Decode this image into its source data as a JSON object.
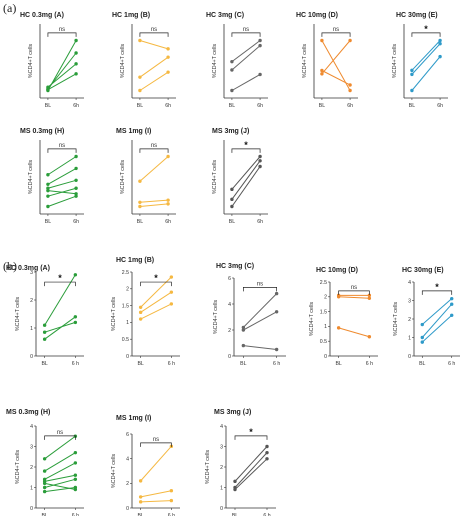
{
  "figure_labels": {
    "a": "(a)",
    "b": "(b)"
  },
  "colors": {
    "HC_low": "#2a9d3a",
    "HC_mid_dose": "#f5b841",
    "HC_3mg": "#666666",
    "HC_10mg": "#ef8a2e",
    "HC_30mg": "#2e9ac9",
    "MS_low": "#2a9d3a",
    "MS_1mg": "#f5b841",
    "MS_3mg": "#555555"
  },
  "chart_data": [
    {
      "type": "line",
      "group": "a",
      "title": "HC 0.3mg (A)",
      "ylabel": "%CD4+T cells",
      "categories": [
        "BL",
        "6h"
      ],
      "colorKey": "HC_low",
      "sig": "ns",
      "yticks": [],
      "series": [
        {
          "values": [
            5.0,
            11.0
          ]
        },
        {
          "values": [
            5.2,
            9.5
          ]
        },
        {
          "values": [
            5.4,
            8.2
          ]
        },
        {
          "values": [
            5.1,
            7.0
          ]
        }
      ]
    },
    {
      "type": "line",
      "group": "a",
      "title": "HC 1mg (B)",
      "ylabel": "%CD4+T cells",
      "categories": [
        "BL",
        "6h"
      ],
      "colorKey": "HC_mid_dose",
      "sig": "ns",
      "yticks": [],
      "series": [
        {
          "values": [
            8.2,
            7.7
          ]
        },
        {
          "values": [
            6.0,
            7.2
          ]
        },
        {
          "values": [
            5.2,
            6.3
          ]
        }
      ]
    },
    {
      "type": "line",
      "group": "a",
      "title": "HC 3mg (C)",
      "ylabel": "%CD4+T cells",
      "categories": [
        "BL",
        "6h"
      ],
      "colorKey": "HC_3mg",
      "sig": "ns",
      "yticks": [],
      "series": [
        {
          "values": [
            6.5,
            9.8
          ]
        },
        {
          "values": [
            5.2,
            9.0
          ]
        },
        {
          "values": [
            2.0,
            4.5
          ]
        }
      ]
    },
    {
      "type": "line",
      "group": "a",
      "title": "HC 10mg (D)",
      "ylabel": "%CD4+T cells",
      "categories": [
        "BL",
        "6h"
      ],
      "colorKey": "HC_10mg",
      "sig": "ns",
      "yticks": [],
      "series": [
        {
          "values": [
            9.5,
            5.0
          ]
        },
        {
          "values": [
            6.5,
            9.5
          ]
        },
        {
          "values": [
            6.8,
            5.5
          ]
        }
      ]
    },
    {
      "type": "line",
      "group": "a",
      "title": "HC 30mg (E)",
      "ylabel": "%CD4+T cells",
      "categories": [
        "BL",
        "6h"
      ],
      "colorKey": "HC_30mg",
      "sig": "*",
      "yticks": [],
      "series": [
        {
          "values": [
            6.5,
            10.2
          ]
        },
        {
          "values": [
            6.0,
            9.8
          ]
        },
        {
          "values": [
            4.0,
            8.2
          ]
        }
      ]
    },
    {
      "type": "line",
      "group": "a",
      "title": "MS 0.3mg (H)",
      "ylabel": "%CD4+T cells",
      "categories": [
        "BL",
        "6h"
      ],
      "colorKey": "MS_low",
      "sig": "ns",
      "yticks": [],
      "series": [
        {
          "values": [
            8.2,
            10.5
          ]
        },
        {
          "values": [
            7.0,
            9.0
          ]
        },
        {
          "values": [
            6.5,
            7.5
          ]
        },
        {
          "values": [
            5.5,
            6.5
          ]
        },
        {
          "values": [
            6.2,
            5.8
          ]
        },
        {
          "values": [
            4.2,
            5.5
          ]
        }
      ]
    },
    {
      "type": "line",
      "group": "a",
      "title": "MS 1mg (I)",
      "ylabel": "%CD4+T cells",
      "categories": [
        "BL",
        "6h"
      ],
      "colorKey": "MS_1mg",
      "sig": "ns",
      "yticks": [],
      "series": [
        {
          "values": [
            9.8,
            14.5
          ]
        },
        {
          "values": [
            5.8,
            6.2
          ]
        },
        {
          "values": [
            5.0,
            5.5
          ]
        }
      ]
    },
    {
      "type": "line",
      "group": "a",
      "title": "MS 3mg (J)",
      "ylabel": "%CD4+T cells",
      "categories": [
        "BL",
        "6h"
      ],
      "colorKey": "MS_3mg",
      "sig": "*",
      "yticks": [],
      "series": [
        {
          "values": [
            8.2,
            10.5
          ]
        },
        {
          "values": [
            7.5,
            10.2
          ]
        },
        {
          "values": [
            7.0,
            9.8
          ]
        }
      ]
    },
    {
      "type": "line",
      "group": "b",
      "title": "HC 0.3mg (A)",
      "ylabel": "%CD4+T cells",
      "categories": [
        "BL",
        "6 h"
      ],
      "colorKey": "HC_low",
      "sig": "*",
      "ylim": [
        0,
        3
      ],
      "yticks": [
        0,
        1,
        2,
        3
      ],
      "series": [
        {
          "values": [
            1.1,
            2.9
          ]
        },
        {
          "values": [
            0.6,
            1.4
          ]
        },
        {
          "values": [
            0.85,
            1.2
          ]
        }
      ]
    },
    {
      "type": "line",
      "group": "b",
      "title": "HC 1mg (B)",
      "ylabel": "%CD4+T cells",
      "categories": [
        "BL",
        "6 h"
      ],
      "colorKey": "HC_mid_dose",
      "sig": "*",
      "ylim": [
        0,
        2.5
      ],
      "yticks": [
        0,
        0.5,
        1.0,
        1.5,
        2.0,
        2.5
      ],
      "series": [
        {
          "values": [
            1.45,
            2.35
          ]
        },
        {
          "values": [
            1.3,
            1.9
          ]
        },
        {
          "values": [
            1.1,
            1.55
          ]
        }
      ]
    },
    {
      "type": "line",
      "group": "b",
      "title": "HC 3mg (C)",
      "ylabel": "%CD4+T cells",
      "categories": [
        "BL",
        "6 h"
      ],
      "colorKey": "HC_3mg",
      "sig": "ns",
      "ylim": [
        0,
        6
      ],
      "yticks": [
        0,
        2,
        4,
        6
      ],
      "series": [
        {
          "values": [
            2.2,
            4.8
          ]
        },
        {
          "values": [
            2.0,
            3.4
          ]
        },
        {
          "values": [
            0.8,
            0.5
          ]
        }
      ]
    },
    {
      "type": "line",
      "group": "b",
      "title": "HC 10mg (D)",
      "ylabel": "%CD4+T cells",
      "categories": [
        "BL",
        "6 h"
      ],
      "colorKey": "HC_10mg",
      "sig": "ns",
      "ylim": [
        0,
        2.5
      ],
      "yticks": [
        0,
        0.5,
        1.0,
        1.5,
        2.0,
        2.5
      ],
      "series": [
        {
          "values": [
            2.05,
            2.05
          ]
        },
        {
          "values": [
            2.0,
            1.95
          ]
        },
        {
          "values": [
            0.95,
            0.65
          ]
        }
      ]
    },
    {
      "type": "line",
      "group": "b",
      "title": "HC 30mg (E)",
      "ylabel": "%CD4+T cells",
      "categories": [
        "BL",
        "6 h"
      ],
      "colorKey": "HC_30mg",
      "sig": "*",
      "ylim": [
        0,
        4
      ],
      "yticks": [
        0,
        1,
        2,
        3,
        4
      ],
      "series": [
        {
          "values": [
            1.7,
            3.1
          ]
        },
        {
          "values": [
            1.0,
            2.8
          ]
        },
        {
          "values": [
            0.75,
            2.2
          ]
        }
      ]
    },
    {
      "type": "line",
      "group": "b",
      "title": "MS 0.3mg (H)",
      "ylabel": "%CD4+T cells",
      "categories": [
        "BL",
        "6 h"
      ],
      "colorKey": "MS_low",
      "sig": "ns",
      "ylim": [
        0,
        4
      ],
      "yticks": [
        0,
        1,
        2,
        3,
        4
      ],
      "series": [
        {
          "values": [
            2.4,
            3.5
          ]
        },
        {
          "values": [
            1.8,
            2.7
          ]
        },
        {
          "values": [
            1.4,
            2.2
          ]
        },
        {
          "values": [
            1.3,
            1.6
          ]
        },
        {
          "values": [
            1.0,
            1.4
          ]
        },
        {
          "values": [
            0.8,
            1.0
          ]
        },
        {
          "values": [
            1.2,
            0.9
          ]
        }
      ]
    },
    {
      "type": "line",
      "group": "b",
      "title": "MS 1mg (I)",
      "ylabel": "%CD4+T cells",
      "categories": [
        "BL",
        "6 h"
      ],
      "colorKey": "MS_1mg",
      "sig": "ns",
      "ylim": [
        0,
        6
      ],
      "yticks": [
        0,
        2,
        4,
        6
      ],
      "series": [
        {
          "values": [
            2.2,
            5.0
          ]
        },
        {
          "values": [
            0.9,
            1.4
          ]
        },
        {
          "values": [
            0.5,
            0.6
          ]
        }
      ]
    },
    {
      "type": "line",
      "group": "b",
      "title": "MS 3mg (J)",
      "ylabel": "%CD4+T cells",
      "categories": [
        "BL",
        "6 h"
      ],
      "colorKey": "MS_3mg",
      "sig": "*",
      "ylim": [
        0,
        4
      ],
      "yticks": [
        0,
        1,
        2,
        3,
        4
      ],
      "series": [
        {
          "values": [
            1.3,
            3.0
          ]
        },
        {
          "values": [
            1.0,
            2.7
          ]
        },
        {
          "values": [
            0.9,
            2.4
          ]
        }
      ]
    }
  ]
}
